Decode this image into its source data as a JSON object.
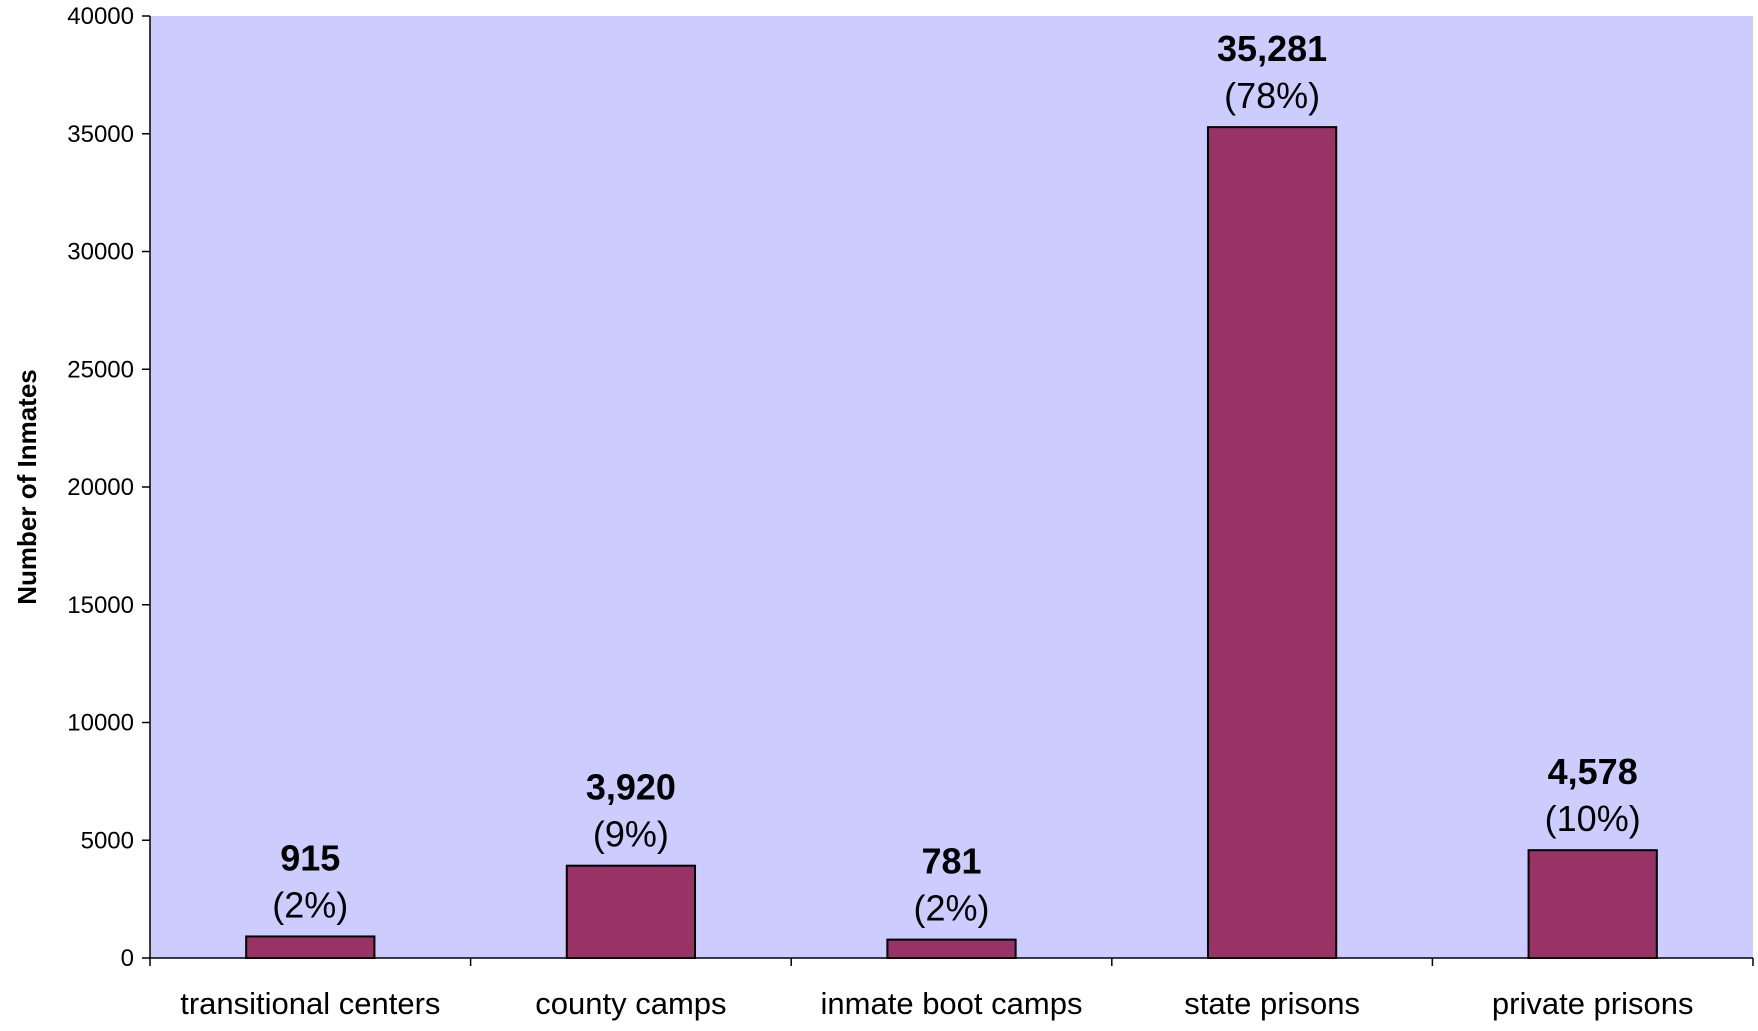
{
  "chart_data": {
    "type": "bar",
    "title": "",
    "xlabel": "",
    "ylabel": "Number of Inmates",
    "ylim": [
      0,
      40000
    ],
    "yticks": [
      0,
      5000,
      10000,
      15000,
      20000,
      25000,
      30000,
      35000,
      40000
    ],
    "categories": [
      "transitional centers",
      "county camps",
      "inmate boot camps",
      "state prisons",
      "private prisons"
    ],
    "values": [
      915,
      3920,
      781,
      35281,
      4578
    ],
    "value_labels": [
      "915",
      "3,920",
      "781",
      "35,281",
      "4,578"
    ],
    "percent_labels": [
      "(2%)",
      "(9%)",
      "(2%)",
      "(78%)",
      "(10%)"
    ],
    "grid": false,
    "legend": "none",
    "colors": {
      "plot_background": "#ccccff",
      "bar_fill": "#993366",
      "bar_stroke": "#000000"
    }
  }
}
